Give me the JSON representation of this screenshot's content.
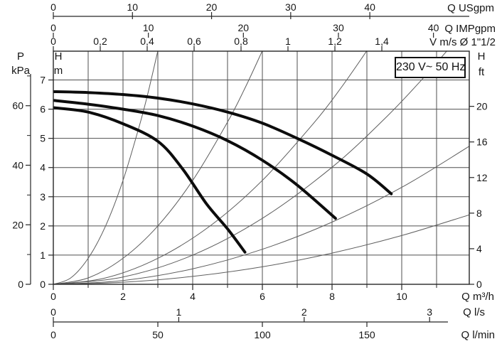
{
  "chart_data": {
    "type": "line",
    "title": "230 V~ 50 Hz",
    "background": "#ffffff",
    "colors": {
      "grid": "#4f4f4f",
      "border": "#262626",
      "pump_curve": "#0c0c0c",
      "system_curve": "#5e5e5e",
      "text": "#151515"
    },
    "x_axis_unit": "m3/h",
    "x_range_m3h": [
      0,
      11.94
    ],
    "y_axis_unit": "m",
    "y_range_m": [
      0,
      7.98
    ],
    "grid": {
      "x_step_m3h": 1,
      "y_step_m": 1
    },
    "axes": {
      "top": [
        {
          "id": "flow-usgpm",
          "label": "Q USgpm",
          "ticks": [
            {
              "label": "0",
              "q": 0
            },
            {
              "label": "10",
              "q": 2.271
            },
            {
              "label": "20",
              "q": 4.542
            },
            {
              "label": "30",
              "q": 6.813
            },
            {
              "label": "40",
              "q": 9.084
            }
          ]
        },
        {
          "id": "flow-impgpm",
          "label": "Q IMPgpm",
          "ticks": [
            {
              "label": "0",
              "q": 0
            },
            {
              "label": "10",
              "q": 2.728
            },
            {
              "label": "20",
              "q": 5.455
            },
            {
              "label": "30",
              "q": 8.183
            },
            {
              "label": "40",
              "q": 10.911
            }
          ]
        },
        {
          "id": "velocity-ms",
          "label": "V m/s Ø 1\"1/2",
          "ticks": [
            {
              "label": "0",
              "q": 0
            },
            {
              "label": "0,2",
              "q": 1.347
            },
            {
              "label": "0,4",
              "q": 2.694
            },
            {
              "label": "0,6",
              "q": 4.041
            },
            {
              "label": "0,8",
              "q": 5.388
            },
            {
              "label": "1",
              "q": 6.735
            },
            {
              "label": "1,2",
              "q": 8.082
            },
            {
              "label": "1,4",
              "q": 9.429
            }
          ]
        }
      ],
      "bottom": [
        {
          "id": "flow-m3h",
          "label": "Q m³/h",
          "ticks": [
            {
              "label": "0",
              "q": 0
            },
            {
              "label": "2",
              "q": 2
            },
            {
              "label": "4",
              "q": 4
            },
            {
              "label": "6",
              "q": 6
            },
            {
              "label": "8",
              "q": 8
            },
            {
              "label": "10",
              "q": 10
            }
          ],
          "minor_q": [
            1,
            3,
            5,
            7,
            9,
            11
          ]
        },
        {
          "id": "flow-ls",
          "label": "Q l/s",
          "ticks": [
            {
              "label": "0",
              "q": 0
            },
            {
              "label": "1",
              "q": 3.6
            },
            {
              "label": "2",
              "q": 7.2
            },
            {
              "label": "3",
              "q": 10.8
            }
          ]
        },
        {
          "id": "flow-lmin",
          "label": "Q l/min",
          "ticks": [
            {
              "label": "0",
              "q": 0
            },
            {
              "label": "50",
              "q": 3
            },
            {
              "label": "100",
              "q": 6
            },
            {
              "label": "150",
              "q": 9
            }
          ]
        }
      ],
      "left": [
        {
          "id": "head-m",
          "label_lines": [
            "H",
            "m"
          ],
          "ticks": [
            {
              "label": "0",
              "h": 0
            },
            {
              "label": "1",
              "h": 1
            },
            {
              "label": "2",
              "h": 2
            },
            {
              "label": "3",
              "h": 3
            },
            {
              "label": "4",
              "h": 4
            },
            {
              "label": "5",
              "h": 5
            },
            {
              "label": "6",
              "h": 6
            },
            {
              "label": "7",
              "h": 7
            }
          ]
        },
        {
          "id": "pressure-kpa",
          "label_lines": [
            "P",
            "kPa"
          ],
          "ticks": [
            {
              "label": "0",
              "h": 0
            },
            {
              "label": "20",
              "h": 2.039
            },
            {
              "label": "40",
              "h": 4.079
            },
            {
              "label": "60",
              "h": 6.118
            }
          ],
          "minor_h": [
            1.02,
            3.059,
            5.098,
            7.138
          ]
        }
      ],
      "right": [
        {
          "id": "head-ft",
          "label_lines": [
            "H",
            "ft"
          ],
          "ticks": [
            {
              "label": "0",
              "h": 0
            },
            {
              "label": "4",
              "h": 1.219
            },
            {
              "label": "8",
              "h": 2.438
            },
            {
              "label": "12",
              "h": 3.658
            },
            {
              "label": "16",
              "h": 4.877
            },
            {
              "label": "20",
              "h": 6.096
            }
          ]
        }
      ]
    },
    "series": {
      "pump_curves": [
        {
          "name": "pump-curve-high-speed",
          "points": [
            [
              0,
              6.6
            ],
            [
              1,
              6.57
            ],
            [
              2,
              6.5
            ],
            [
              3,
              6.38
            ],
            [
              4,
              6.18
            ],
            [
              5,
              5.9
            ],
            [
              6,
              5.52
            ],
            [
              7,
              5.0
            ],
            [
              8,
              4.42
            ],
            [
              9,
              3.78
            ],
            [
              9.7,
              3.1
            ]
          ]
        },
        {
          "name": "pump-curve-mid-speed",
          "points": [
            [
              0,
              6.3
            ],
            [
              1,
              6.17
            ],
            [
              2,
              6.0
            ],
            [
              3,
              5.78
            ],
            [
              4,
              5.42
            ],
            [
              5,
              4.92
            ],
            [
              6,
              4.25
            ],
            [
              7,
              3.4
            ],
            [
              8.1,
              2.26
            ]
          ]
        },
        {
          "name": "pump-curve-low-speed",
          "points": [
            [
              0,
              6.05
            ],
            [
              1,
              5.9
            ],
            [
              2,
              5.5
            ],
            [
              3,
              4.9
            ],
            [
              3.7,
              3.97
            ],
            [
              4.4,
              2.75
            ],
            [
              5,
              1.9
            ],
            [
              5.5,
              1.1
            ]
          ]
        }
      ],
      "system_curves": [
        {
          "name": "system-curve-1",
          "points": [
            [
              0,
              0
            ],
            [
              0.5,
              0.22
            ],
            [
              1,
              0.89
            ],
            [
              1.5,
              2.0
            ],
            [
              2,
              3.56
            ],
            [
              2.5,
              5.56
            ],
            [
              2.75,
              6.72
            ],
            [
              3,
              8.0
            ]
          ]
        },
        {
          "name": "system-curve-2",
          "points": [
            [
              0,
              0
            ],
            [
              1,
              0.22
            ],
            [
              2,
              0.89
            ],
            [
              3,
              2.0
            ],
            [
              4,
              3.56
            ],
            [
              5,
              5.56
            ],
            [
              5.5,
              6.72
            ],
            [
              6,
              8.0
            ]
          ]
        },
        {
          "name": "system-curve-3",
          "points": [
            [
              0,
              0
            ],
            [
              1.5,
              0.22
            ],
            [
              3,
              0.89
            ],
            [
              4.5,
              2.0
            ],
            [
              6,
              3.56
            ],
            [
              7.5,
              5.56
            ],
            [
              8.25,
              6.72
            ],
            [
              9,
              8.0
            ]
          ]
        },
        {
          "name": "system-curve-4",
          "points": [
            [
              0,
              0
            ],
            [
              2,
              0.25
            ],
            [
              4,
              1.0
            ],
            [
              6,
              2.26
            ],
            [
              8,
              4.01
            ],
            [
              9.5,
              5.66
            ],
            [
              10.5,
              6.91
            ],
            [
              11.3,
              8.0
            ]
          ]
        },
        {
          "name": "system-curve-5",
          "points": [
            [
              0,
              0
            ],
            [
              2,
              0.13
            ],
            [
              4,
              0.53
            ],
            [
              6,
              1.2
            ],
            [
              8,
              2.13
            ],
            [
              10,
              3.32
            ],
            [
              11.94,
              4.73
            ]
          ]
        },
        {
          "name": "system-curve-6",
          "points": [
            [
              0,
              0
            ],
            [
              2,
              0.07
            ],
            [
              4,
              0.27
            ],
            [
              6,
              0.6
            ],
            [
              8,
              1.07
            ],
            [
              10,
              1.67
            ],
            [
              11.94,
              2.38
            ]
          ]
        }
      ]
    }
  }
}
